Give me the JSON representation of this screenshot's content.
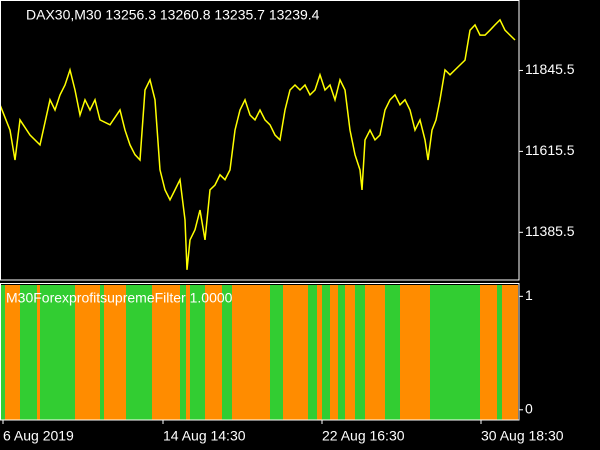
{
  "chart_data": [
    {
      "type": "line",
      "title": "DAX30,M30  13256.3 13260.8 13235.7 13239.4",
      "x": [
        0,
        10,
        15,
        20,
        30,
        40,
        50,
        55,
        60,
        65,
        70,
        75,
        80,
        85,
        90,
        95,
        100,
        110,
        120,
        125,
        130,
        135,
        140,
        145,
        150,
        155,
        160,
        165,
        170,
        175,
        180,
        185,
        187,
        190,
        195,
        200,
        205,
        210,
        215,
        220,
        225,
        230,
        235,
        240,
        245,
        250,
        255,
        260,
        265,
        270,
        275,
        280,
        285,
        290,
        295,
        300,
        305,
        310,
        315,
        320,
        325,
        330,
        335,
        340,
        345,
        350,
        355,
        360,
        362,
        365,
        370,
        375,
        380,
        385,
        390,
        395,
        400,
        405,
        410,
        415,
        420,
        425,
        428,
        432,
        436,
        440,
        445,
        450,
        455,
        460,
        465,
        470,
        475,
        480,
        485,
        490,
        495,
        500,
        505,
        510,
        515
      ],
      "series": [
        {
          "name": "DAX30,M30",
          "color": "#ffff00",
          "values": [
            11748,
            11676,
            11591,
            11705,
            11662,
            11634,
            11762,
            11733,
            11776,
            11804,
            11847,
            11790,
            11719,
            11762,
            11733,
            11762,
            11705,
            11691,
            11733,
            11676,
            11634,
            11606,
            11591,
            11790,
            11819,
            11762,
            11563,
            11506,
            11478,
            11506,
            11535,
            11421,
            11279,
            11364,
            11393,
            11449,
            11364,
            11506,
            11520,
            11549,
            11535,
            11563,
            11676,
            11733,
            11762,
            11719,
            11705,
            11733,
            11705,
            11691,
            11662,
            11648,
            11733,
            11790,
            11804,
            11790,
            11804,
            11776,
            11790,
            11833,
            11790,
            11804,
            11762,
            11819,
            11790,
            11676,
            11606,
            11563,
            11506,
            11648,
            11676,
            11648,
            11662,
            11733,
            11762,
            11776,
            11748,
            11762,
            11733,
            11676,
            11705,
            11648,
            11591,
            11676,
            11705,
            11762,
            11847,
            11833,
            11847,
            11861,
            11875,
            11960,
            11975,
            11946,
            11946,
            11960,
            11975,
            11989,
            11960,
            11946,
            11932
          ]
        }
      ],
      "xlim": [
        0,
        519
      ],
      "ylim": [
        11250,
        12040
      ],
      "yticks": [
        11385.5,
        11615.5,
        11845.5
      ]
    },
    {
      "type": "state-bands",
      "title": "M30ForexprofitsupremeFilter 1.0000",
      "bins": [
        0,
        5,
        20,
        37,
        40,
        75,
        100,
        104,
        126,
        152,
        180,
        186,
        190,
        205,
        222,
        232,
        270,
        283,
        308,
        317,
        322,
        330,
        338,
        345,
        355,
        365,
        385,
        400,
        430,
        480,
        497,
        502,
        518
      ],
      "colors": [
        "#32cd32",
        "#ff8c00",
        "#32cd32",
        "#ff8c00",
        "#32cd32",
        "#ff8c00",
        "#32cd32",
        "#ff8c00",
        "#32cd32",
        "#ff8c00",
        "#32cd32",
        "#ff8c00",
        "#32cd32",
        "#ff8c00",
        "#32cd32",
        "#ff8c00",
        "#32cd32",
        "#ff8c00",
        "#32cd32",
        "#ff8c00",
        "#32cd32",
        "#ff8c00",
        "#32cd32",
        "#ff8c00",
        "#32cd32",
        "#ff8c00",
        "#32cd32",
        "#ff8c00",
        "#32cd32",
        "#ff8c00",
        "#32cd32",
        "#ff8c00"
      ],
      "xlim": [
        0,
        519
      ],
      "ylim": [
        -0.09,
        1.1
      ],
      "yticks": [
        0,
        1
      ],
      "xticks": [
        {
          "value": 3,
          "label": "6 Aug 2019"
        },
        {
          "value": 163,
          "label": "14 Aug 14:30"
        },
        {
          "value": 322,
          "label": "22 Aug 16:30"
        },
        {
          "value": 481,
          "label": "30 Aug 18:30"
        }
      ]
    }
  ]
}
